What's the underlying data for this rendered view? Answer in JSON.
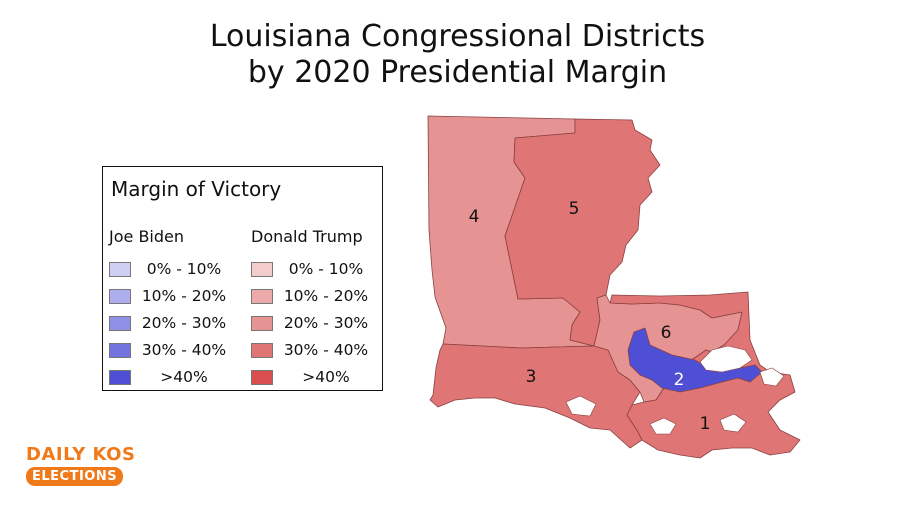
{
  "title_line1": "Louisiana Congressional Districts",
  "title_line2": "by 2020 Presidential Margin",
  "legend": {
    "title": "Margin of Victory",
    "biden_header": "Joe Biden",
    "trump_header": "Donald Trump",
    "biden_rows": [
      {
        "label": "0% - 10%",
        "color": "#cfcff4"
      },
      {
        "label": "10% - 20%",
        "color": "#aeaeee"
      },
      {
        "label": "20% - 30%",
        "color": "#9090e6"
      },
      {
        "label": "30% - 40%",
        "color": "#7474de"
      },
      {
        "label": ">40%",
        "color": "#4f4fd6"
      }
    ],
    "trump_rows": [
      {
        "label": "0% - 10%",
        "color": "#f3cccc"
      },
      {
        "label": "10% - 20%",
        "color": "#ecaaaa"
      },
      {
        "label": "20% - 30%",
        "color": "#e69393"
      },
      {
        "label": "30% - 40%",
        "color": "#e07575"
      },
      {
        "label": ">40%",
        "color": "#d94f4f"
      }
    ]
  },
  "districts": [
    {
      "id": "1",
      "label": "1",
      "color": "#e07575"
    },
    {
      "id": "2",
      "label": "2",
      "color": "#4f4fd6"
    },
    {
      "id": "3",
      "label": "3",
      "color": "#e07575"
    },
    {
      "id": "4",
      "label": "4",
      "color": "#e69393"
    },
    {
      "id": "5",
      "label": "5",
      "color": "#e07575"
    },
    {
      "id": "6",
      "label": "6",
      "color": "#e69393"
    }
  ],
  "logo": {
    "top": "DAILY KOS",
    "bottom": "ELECTIONS",
    "color": "#f07a1a"
  }
}
